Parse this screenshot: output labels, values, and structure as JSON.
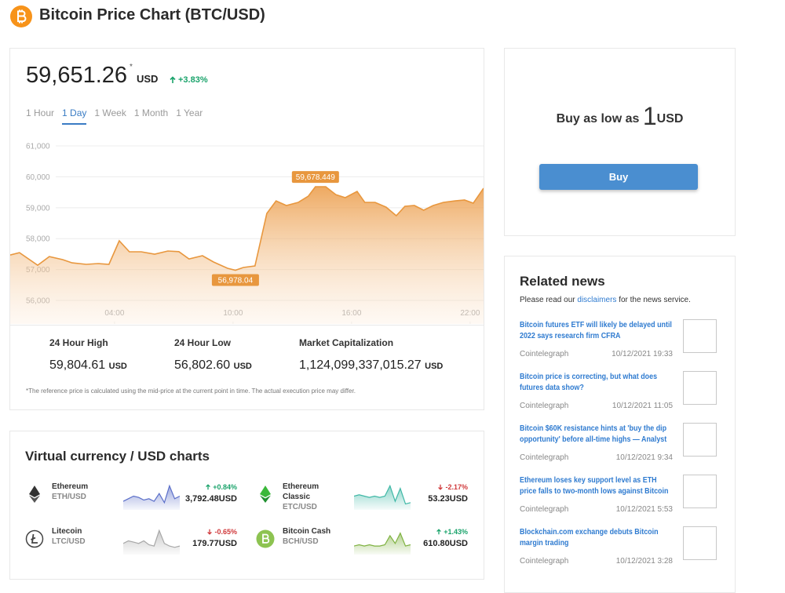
{
  "header": {
    "title": "Bitcoin Price Chart (BTC/USD)"
  },
  "price": {
    "value": "59,651.26",
    "note": "*",
    "currency": "USD",
    "change": "+3.83%",
    "direction": "up"
  },
  "tabs": {
    "items": [
      "1 Hour",
      "1 Day",
      "1 Week",
      "1 Month",
      "1 Year"
    ],
    "active": 1
  },
  "chart_data": {
    "type": "area",
    "color": "#e8973e",
    "x": [
      -1.28,
      -0.81,
      0.11,
      0.7,
      1.38,
      1.85,
      2.57,
      3.17,
      3.72,
      4.24,
      4.75,
      5.35,
      6.03,
      6.7,
      7.26,
      7.77,
      8.45,
      9.01,
      9.72,
      10.12,
      10.52,
      11.11,
      11.71,
      12.18,
      12.7,
      13.3,
      13.81,
      14.17,
      14.69,
      15.2,
      15.68,
      16.28,
      16.67,
      17.19,
      17.75,
      18.26,
      18.7,
      19.18,
      19.65,
      20.13,
      20.65,
      21.24,
      21.72,
      22.16,
      22.68
    ],
    "values": [
      57472,
      57548,
      57142,
      57421,
      57320,
      57218,
      57168,
      57193,
      57168,
      57929,
      57574,
      57574,
      57498,
      57599,
      57580,
      57345,
      57447,
      57244,
      57041,
      56978,
      57066,
      57117,
      58817,
      59223,
      59071,
      59173,
      59376,
      59678,
      59678,
      59426,
      59325,
      59528,
      59173,
      59173,
      59020,
      58741,
      59046,
      59071,
      58919,
      59071,
      59173,
      59223,
      59249,
      59147,
      59630
    ],
    "xlim": [
      -1.28,
      22.68
    ],
    "ylim": [
      55240,
      61280
    ],
    "xticks": [
      {
        "value": 4,
        "label": "04:00"
      },
      {
        "value": 10,
        "label": "10:00"
      },
      {
        "value": 16,
        "label": "16:00"
      },
      {
        "value": 22,
        "label": "22:00"
      }
    ],
    "yticks": [
      {
        "value": 56000,
        "label": "56,000"
      },
      {
        "value": 57000,
        "label": "57,000"
      },
      {
        "value": 58000,
        "label": "58,000"
      },
      {
        "value": 59000,
        "label": "59,000"
      },
      {
        "value": 60000,
        "label": "60,000"
      },
      {
        "value": 61000,
        "label": "61,000"
      }
    ],
    "grid": true,
    "annotations": [
      {
        "label": "59,678.449",
        "x": 14.17,
        "y": 59678.449,
        "position": "above"
      },
      {
        "label": "56,978.04",
        "x": 10.12,
        "y": 56978.04,
        "position": "below"
      }
    ]
  },
  "stats": [
    {
      "label": "24 Hour High",
      "value": "59,804.61",
      "unit": "USD"
    },
    {
      "label": "24 Hour Low",
      "value": "56,802.60",
      "unit": "USD"
    },
    {
      "label": "Market Capitalization",
      "value": "1,124,099,337,015.27",
      "unit": "USD"
    }
  ],
  "footnote": "*The reference price is calculated using the mid-price at the current point in time. The actual execution price may differ.",
  "currencies": {
    "title": "Virtual currency / USD charts",
    "spark_ylim": [
      0,
      10
    ],
    "items": [
      {
        "name": "Ethereum",
        "pair": "ETH/USD",
        "change": "+0.84%",
        "direction": "up",
        "price": "3,792.48USD",
        "color": "#5b6fc9",
        "icon": "eth",
        "values": [
          3,
          4,
          5,
          4.5,
          3.5,
          4,
          3,
          6,
          2.5,
          9,
          4,
          5
        ]
      },
      {
        "name": "Ethereum Classic",
        "pair": "ETC/USD",
        "change": "-2.17%",
        "direction": "down",
        "price": "53.23USD",
        "color": "#3fb8a6",
        "icon": "etc",
        "values": [
          5,
          5.5,
          5,
          4.5,
          5,
          4.5,
          5,
          9,
          3,
          8,
          2,
          2.5
        ]
      },
      {
        "name": "Litecoin",
        "pair": "LTC/USD",
        "change": "-0.65%",
        "direction": "down",
        "price": "179.77USD",
        "color": "#a8a8a8",
        "icon": "ltc",
        "values": [
          4,
          5,
          4.5,
          4,
          5,
          3.5,
          3,
          9,
          4,
          3,
          2.5,
          3
        ]
      },
      {
        "name": "Bitcoin Cash",
        "pair": "BCH/USD",
        "change": "+1.43%",
        "direction": "up",
        "price": "610.80USD",
        "color": "#7fb241",
        "icon": "bch",
        "values": [
          3,
          3.5,
          3,
          3.5,
          3,
          3,
          3.5,
          7,
          4,
          8,
          3,
          3.5
        ]
      }
    ]
  },
  "buy": {
    "text": "Buy as low as",
    "amount": "1",
    "currency": "USD",
    "button": "Buy"
  },
  "news": {
    "title": "Related news",
    "notice_before": "Please read our",
    "notice_link": "disclaimers",
    "notice_after": "for the news service.",
    "items": [
      {
        "title": "Bitcoin futures ETF will likely be delayed until 2022 says research firm CFRA",
        "source": "Cointelegraph",
        "date": "10/12/2021 19:33"
      },
      {
        "title": "Bitcoin price is correcting, but what does futures data show?",
        "source": "Cointelegraph",
        "date": "10/12/2021 11:05"
      },
      {
        "title": "Bitcoin $60K resistance hints at 'buy the dip opportunity' before all-time highs — Analyst",
        "source": "Cointelegraph",
        "date": "10/12/2021 9:34"
      },
      {
        "title": "Ethereum loses key support level as ETH price falls to two-month lows against Bitcoin",
        "source": "Cointelegraph",
        "date": "10/12/2021 5:53"
      },
      {
        "title": "Blockchain.com exchange debuts Bitcoin margin trading",
        "source": "Cointelegraph",
        "date": "10/12/2021 3:28"
      }
    ]
  }
}
